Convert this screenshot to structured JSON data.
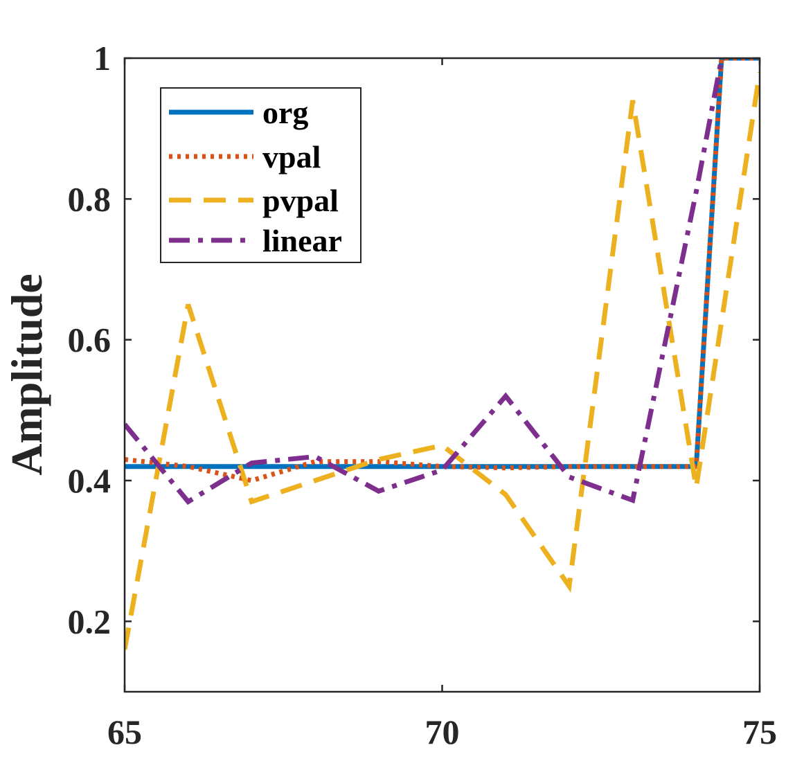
{
  "chart_data": {
    "type": "line",
    "title": "",
    "xlabel": "",
    "ylabel": "Amplitude",
    "xlim": [
      65,
      75
    ],
    "ylim": [
      0.1,
      1.0
    ],
    "xticks": [
      65,
      70,
      75
    ],
    "xtick_labels": [
      "65",
      "70",
      "75"
    ],
    "yticks": [
      0.2,
      0.4,
      0.6,
      0.8,
      1.0
    ],
    "ytick_labels": [
      "0.2",
      "0.4",
      "0.6",
      "0.8",
      "1"
    ],
    "grid": false,
    "legend_position": "top-left",
    "series": [
      {
        "name": "org",
        "color": "#0072BD",
        "style": "solid",
        "x": [
          65,
          66,
          67,
          68,
          69,
          70,
          71,
          72,
          73,
          74,
          74.4,
          75
        ],
        "y": [
          0.42,
          0.42,
          0.42,
          0.42,
          0.42,
          0.42,
          0.42,
          0.42,
          0.42,
          0.42,
          1.0,
          1.0
        ]
      },
      {
        "name": "vpal",
        "color": "#D95319",
        "style": "dotted",
        "x": [
          65,
          66,
          67,
          68,
          69,
          70,
          71,
          72,
          73,
          74,
          74.4,
          75
        ],
        "y": [
          0.43,
          0.42,
          0.4,
          0.427,
          0.427,
          0.42,
          0.418,
          0.42,
          0.42,
          0.42,
          1.0,
          1.0
        ]
      },
      {
        "name": "pvpal",
        "color": "#EDB120",
        "style": "dashed",
        "x": [
          65,
          66,
          67,
          68,
          69,
          70,
          71,
          72,
          73,
          74,
          75
        ],
        "y": [
          0.16,
          0.65,
          0.37,
          0.4,
          0.43,
          0.45,
          0.38,
          0.25,
          0.94,
          0.39,
          0.98
        ]
      },
      {
        "name": "linear",
        "color": "#7E2F8E",
        "style": "dashdot",
        "x": [
          65,
          66,
          67,
          68,
          69,
          70,
          71,
          72,
          73,
          74,
          74.4
        ],
        "y": [
          0.48,
          0.37,
          0.425,
          0.434,
          0.385,
          0.415,
          0.52,
          0.405,
          0.372,
          0.81,
          1.0
        ]
      }
    ]
  }
}
